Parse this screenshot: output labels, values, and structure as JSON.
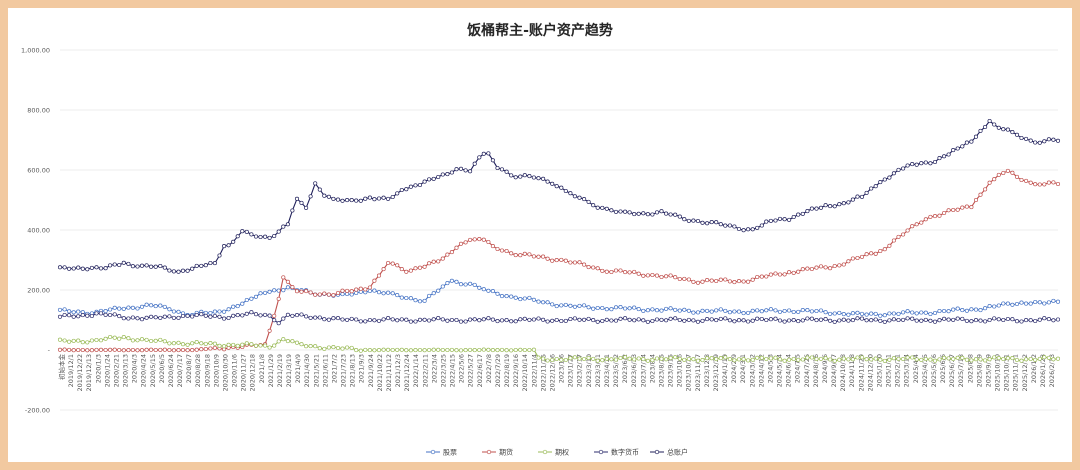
{
  "chart_data": {
    "type": "line",
    "title": "饭桶帮主-账户资产趋势",
    "ylim": [
      -200,
      1000
    ],
    "yticks": [
      {
        "v": 1000,
        "label": "1,000.00"
      },
      {
        "v": 800,
        "label": "800.00"
      },
      {
        "v": 600,
        "label": "600.00"
      },
      {
        "v": 400,
        "label": "400.00"
      },
      {
        "v": 200,
        "label": "200.00"
      },
      {
        "v": 0,
        "label": "-"
      },
      {
        "v": -200,
        "label": "-200.00"
      }
    ],
    "grid": true,
    "legend_position": "bottom",
    "x_labels": [
      "初始本金",
      "2019/12/1",
      "2019/12/22",
      "2019/12/13",
      "2020/1/3",
      "2020/1/24",
      "2020/2/21",
      "2020/3/13",
      "2020/4/3",
      "2020/4/24",
      "2020/5/15",
      "2020/6/5",
      "2020/6/24",
      "2020/7/17",
      "2020/8/7",
      "2020/8/28",
      "2020/9/18",
      "2020/10/9",
      "2020/10/30",
      "2020/11/6",
      "2020/11/27",
      "2020/12/18",
      "2021/1/8",
      "2021/1/29",
      "2021/2/19",
      "2021/3/19",
      "2021/4/9",
      "2021/4/30",
      "2021/5/21",
      "2021/6/11",
      "2021/7/2",
      "2021/7/23",
      "2021/8/13",
      "2021/9/3",
      "2021/9/24",
      "2021/10/22",
      "2021/11/12",
      "2021/12/3",
      "2021/12/24",
      "2022/1/14",
      "2022/2/11",
      "2022/3/4",
      "2022/3/25",
      "2022/4/15",
      "2022/5/6",
      "2022/5/27",
      "2022/6/17",
      "2022/7/8",
      "2022/7/29",
      "2022/8/19",
      "2022/9/16",
      "2022/10/14",
      "2022/11/4",
      "2022/11/25",
      "2022/12/16",
      "2023/1/6",
      "2023/1/27",
      "2023/2/17",
      "2023/3/10",
      "2023/3/31",
      "2023/4/21",
      "2023/5/12",
      "2023/6/2",
      "2023/6/23",
      "2023/7/14",
      "2023/8/4",
      "2023/8/25",
      "2023/9/15",
      "2023/10/6",
      "2023/10/27",
      "2023/11/17",
      "2023/12/8",
      "2023/12/29",
      "2024/1/19",
      "2024/2/9",
      "2024/3/1",
      "2024/3/22",
      "2024/4/12",
      "2024/5/3",
      "2024/5/24",
      "2024/6/14",
      "2024/7/5",
      "2024/7/26",
      "2024/8/16",
      "2024/9/6",
      "2024/9/27",
      "2024/10/18",
      "2024/11/8",
      "2024/11/29",
      "2024/12/20",
      "2025/1/10",
      "2025/1/31",
      "2025/2/21",
      "2025/3/14",
      "2025/4/4",
      "2025/4/25",
      "2025/5/16",
      "2025/6/6",
      "2025/6/27",
      "2025/7/18",
      "2025/8/8",
      "2025/8/29",
      "2025/9/19",
      "2025/10/10",
      "2025/10/31",
      "2025/11/21",
      "2025/12/12",
      "2026/1/2",
      "2026/1/23",
      "2026/2/13"
    ],
    "n_points": 220,
    "series": [
      {
        "name": "股票",
        "color": "#4472c4",
        "keys": [
          [
            0,
            130
          ],
          [
            8,
            125
          ],
          [
            14,
            140
          ],
          [
            20,
            148
          ],
          [
            24,
            138
          ],
          [
            28,
            118
          ],
          [
            34,
            125
          ],
          [
            40,
            152
          ],
          [
            45,
            195
          ],
          [
            50,
            205
          ],
          [
            56,
            190
          ],
          [
            62,
            180
          ],
          [
            68,
            200
          ],
          [
            74,
            180
          ],
          [
            80,
            165
          ],
          [
            86,
            230
          ],
          [
            90,
            220
          ],
          [
            94,
            195
          ],
          [
            100,
            175
          ],
          [
            106,
            160
          ],
          [
            112,
            145
          ],
          [
            120,
            140
          ],
          [
            130,
            135
          ],
          [
            140,
            130
          ],
          [
            150,
            128
          ],
          [
            160,
            132
          ],
          [
            170,
            125
          ],
          [
            175,
            118
          ],
          [
            180,
            120
          ],
          [
            190,
            125
          ],
          [
            200,
            135
          ],
          [
            205,
            145
          ],
          [
            212,
            160
          ],
          [
            216,
            155
          ],
          [
            219,
            160
          ]
        ]
      },
      {
        "name": "期货",
        "color": "#c0504d",
        "keys": [
          [
            0,
            0
          ],
          [
            30,
            0
          ],
          [
            35,
            8
          ],
          [
            40,
            10
          ],
          [
            45,
            18
          ],
          [
            48,
            170
          ],
          [
            49,
            240
          ],
          [
            52,
            195
          ],
          [
            60,
            185
          ],
          [
            68,
            210
          ],
          [
            72,
            290
          ],
          [
            76,
            265
          ],
          [
            80,
            280
          ],
          [
            84,
            300
          ],
          [
            88,
            360
          ],
          [
            92,
            370
          ],
          [
            96,
            340
          ],
          [
            100,
            320
          ],
          [
            110,
            300
          ],
          [
            120,
            265
          ],
          [
            130,
            250
          ],
          [
            140,
            230
          ],
          [
            150,
            230
          ],
          [
            160,
            260
          ],
          [
            170,
            280
          ],
          [
            180,
            330
          ],
          [
            190,
            440
          ],
          [
            200,
            480
          ],
          [
            204,
            560
          ],
          [
            208,
            595
          ],
          [
            214,
            550
          ],
          [
            219,
            555
          ]
        ]
      },
      {
        "name": "期权",
        "color": "#9bbb59",
        "keys": [
          [
            0,
            28
          ],
          [
            8,
            32
          ],
          [
            14,
            42
          ],
          [
            20,
            30
          ],
          [
            28,
            22
          ],
          [
            36,
            18
          ],
          [
            42,
            16
          ],
          [
            46,
            12
          ],
          [
            49,
            38
          ],
          [
            52,
            18
          ],
          [
            60,
            6
          ],
          [
            68,
            0
          ],
          [
            104,
            0
          ],
          [
            104.5,
            -30
          ],
          [
            219,
            -30
          ]
        ]
      },
      {
        "name": "数字货币",
        "color": "#2e2e6e",
        "keys": [
          [
            0,
            110
          ],
          [
            8,
            120
          ],
          [
            14,
            110
          ],
          [
            20,
            105
          ],
          [
            28,
            115
          ],
          [
            36,
            110
          ],
          [
            42,
            120
          ],
          [
            46,
            115
          ],
          [
            48,
            95
          ],
          [
            50,
            115
          ],
          [
            56,
            110
          ],
          [
            62,
            100
          ],
          [
            170,
            100
          ],
          [
            219,
            100
          ]
        ]
      },
      {
        "name": "总账户",
        "color": "#1f1f5a",
        "keys": [
          [
            0,
            270
          ],
          [
            6,
            275
          ],
          [
            10,
            272
          ],
          [
            14,
            290
          ],
          [
            18,
            280
          ],
          [
            22,
            275
          ],
          [
            26,
            262
          ],
          [
            30,
            275
          ],
          [
            34,
            290
          ],
          [
            36,
            350
          ],
          [
            38,
            360
          ],
          [
            40,
            395
          ],
          [
            42,
            380
          ],
          [
            46,
            375
          ],
          [
            50,
            420
          ],
          [
            52,
            500
          ],
          [
            54,
            470
          ],
          [
            56,
            560
          ],
          [
            58,
            520
          ],
          [
            60,
            500
          ],
          [
            64,
            495
          ],
          [
            68,
            510
          ],
          [
            72,
            500
          ],
          [
            76,
            540
          ],
          [
            80,
            560
          ],
          [
            84,
            580
          ],
          [
            88,
            610
          ],
          [
            90,
            595
          ],
          [
            92,
            640
          ],
          [
            94,
            655
          ],
          [
            96,
            610
          ],
          [
            100,
            580
          ],
          [
            104,
            575
          ],
          [
            108,
            560
          ],
          [
            112,
            520
          ],
          [
            116,
            490
          ],
          [
            120,
            470
          ],
          [
            124,
            455
          ],
          [
            128,
            455
          ],
          [
            132,
            460
          ],
          [
            136,
            440
          ],
          [
            140,
            430
          ],
          [
            144,
            420
          ],
          [
            148,
            410
          ],
          [
            152,
            400
          ],
          [
            156,
            430
          ],
          [
            160,
            440
          ],
          [
            164,
            460
          ],
          [
            168,
            480
          ],
          [
            172,
            490
          ],
          [
            176,
            510
          ],
          [
            180,
            560
          ],
          [
            184,
            600
          ],
          [
            188,
            620
          ],
          [
            192,
            630
          ],
          [
            196,
            660
          ],
          [
            200,
            700
          ],
          [
            204,
            760
          ],
          [
            206,
            740
          ],
          [
            210,
            720
          ],
          [
            214,
            690
          ],
          [
            219,
            700
          ]
        ]
      }
    ]
  }
}
